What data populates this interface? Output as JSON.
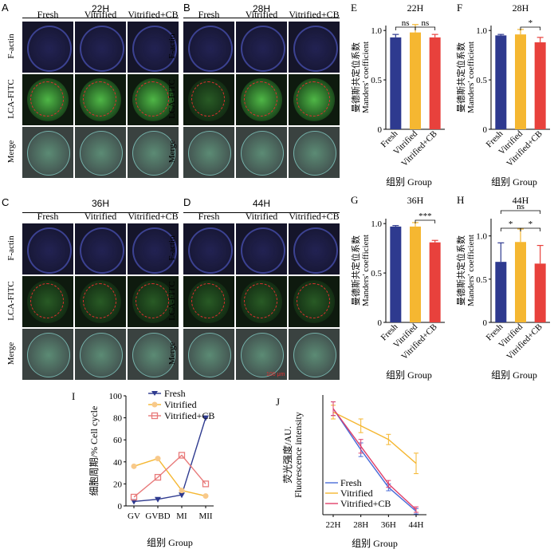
{
  "panels": {
    "A": {
      "letter": "A",
      "title": "22H",
      "cols": [
        "Fresh",
        "Vitrified",
        "Vitrified+CB"
      ],
      "rows": [
        "F-actin",
        "LCA-FITC",
        "Merge"
      ]
    },
    "B": {
      "letter": "B",
      "title": "28H",
      "cols": [
        "Fresh",
        "Vitrified",
        "Vitrified+CB"
      ],
      "rows": [
        "F-actin",
        "LCA-FITC",
        "Merge"
      ]
    },
    "C": {
      "letter": "C",
      "title": "36H",
      "cols": [
        "Fresh",
        "Vitrified",
        "Vitrified+CB"
      ],
      "rows": [
        "F-actin",
        "LCA-FITC",
        "Merge"
      ]
    },
    "D": {
      "letter": "D",
      "title": "44H",
      "cols": [
        "Fresh",
        "Vitrified",
        "Vitrified+CB"
      ],
      "rows": [
        "F-actin",
        "LCA-FITC",
        "Merge"
      ],
      "scale": "100 μm"
    }
  },
  "colors": {
    "fresh": "#2e3a8f",
    "vitrified": "#f5b731",
    "cb": "#e8413c"
  },
  "chart_data": [
    {
      "id": "E",
      "type": "bar",
      "title": "22H",
      "categories": [
        "Fresh",
        "Vitrified",
        "Vitrified+CB"
      ],
      "values": [
        0.93,
        0.98,
        0.93
      ],
      "errors": [
        0.03,
        0.08,
        0.03
      ],
      "ylim": [
        0,
        1.05
      ],
      "yticks": [
        0,
        0.5,
        1.0
      ],
      "ylabel_cn": "曼德斯共定位系数",
      "ylabel": "Manders' coefficient",
      "xlabel": "组别 Group",
      "sig": [
        {
          "from": 0,
          "to": 1,
          "text": "ns"
        },
        {
          "from": 1,
          "to": 2,
          "text": "ns"
        }
      ]
    },
    {
      "id": "F",
      "type": "bar",
      "title": "28H",
      "categories": [
        "Fresh",
        "Vitrified",
        "Vitrified+CB"
      ],
      "values": [
        0.95,
        0.96,
        0.88
      ],
      "errors": [
        0.01,
        0.05,
        0.05
      ],
      "ylim": [
        0,
        1.05
      ],
      "yticks": [
        0,
        0.5,
        1.0
      ],
      "ylabel_cn": "曼德斯共定位系数",
      "ylabel": "Manders' coefficient",
      "xlabel": "组别 Group",
      "sig": [
        {
          "from": 1,
          "to": 2,
          "text": "*"
        }
      ]
    },
    {
      "id": "G",
      "type": "bar",
      "title": "36H",
      "categories": [
        "Fresh",
        "Vitrified",
        "Vitrified+CB"
      ],
      "values": [
        0.97,
        0.97,
        0.81
      ],
      "errors": [
        0.01,
        0.04,
        0.02
      ],
      "ylim": [
        0,
        1.05
      ],
      "yticks": [
        0,
        0.5,
        1.0
      ],
      "ylabel_cn": "曼德斯共定位系数",
      "ylabel": "Manders' coefficient",
      "xlabel": "组别 Group",
      "sig": [
        {
          "from": 1,
          "to": 2,
          "text": "***"
        }
      ]
    },
    {
      "id": "H",
      "type": "bar",
      "title": "44H",
      "categories": [
        "Fresh",
        "Vitrified",
        "Vitrified+CB"
      ],
      "values": [
        0.7,
        0.93,
        0.68
      ],
      "errors": [
        0.22,
        0.15,
        0.21
      ],
      "ylim": [
        0,
        1.2
      ],
      "yticks": [
        0,
        0.5,
        1.0
      ],
      "ylabel_cn": "曼德斯共定位系数",
      "ylabel": "Manders' coefficient",
      "xlabel": "组别 Group",
      "sig": [
        {
          "from": 0,
          "to": 1,
          "text": "*"
        },
        {
          "from": 1,
          "to": 2,
          "text": "*"
        },
        {
          "from": 0,
          "to": 2,
          "text": "ns"
        }
      ]
    },
    {
      "id": "I",
      "type": "line",
      "categories": [
        "GV",
        "GVBD",
        "MI",
        "MII"
      ],
      "ylim": [
        0,
        100
      ],
      "yticks": [
        0,
        20,
        40,
        60,
        80,
        100
      ],
      "ylabel_cn": "细胞周期/%",
      "ylabel": "Cell cycle",
      "xlabel": "组别 Group",
      "series": [
        {
          "name": "Fresh",
          "values": [
            4,
            6,
            10,
            80
          ],
          "marker": "triangle"
        },
        {
          "name": "Vitrified",
          "values": [
            36,
            43,
            14,
            9
          ],
          "marker": "circle"
        },
        {
          "name": "Vitrified+CB",
          "values": [
            8,
            26,
            46,
            20
          ],
          "marker": "square"
        }
      ]
    },
    {
      "id": "J",
      "type": "line",
      "categories": [
        "22H",
        "28H",
        "36H",
        "44H"
      ],
      "ylim": [
        0,
        35
      ],
      "ylabel_cn": "荧光强度/AU.",
      "ylabel": "Fluorescence intensity",
      "xlabel": "组别 Group",
      "series": [
        {
          "name": "Fresh",
          "values": [
            31,
            19,
            8,
            1
          ],
          "errors": [
            2,
            2,
            1,
            0.8
          ]
        },
        {
          "name": "Vitrified",
          "values": [
            30,
            26,
            22,
            15
          ],
          "errors": [
            2,
            2,
            1.5,
            3
          ]
        },
        {
          "name": "Vitrified+CB",
          "values": [
            31,
            20,
            9,
            1.5
          ],
          "errors": [
            2,
            2,
            1,
            0.8
          ]
        }
      ]
    }
  ]
}
